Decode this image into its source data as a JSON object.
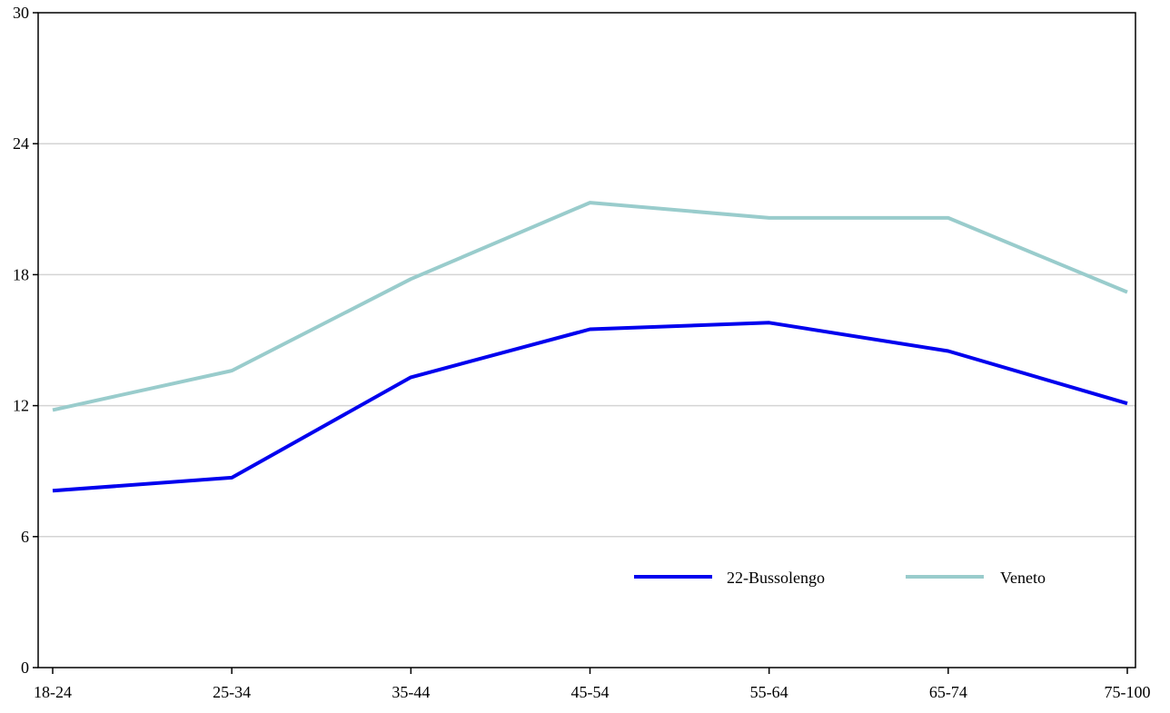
{
  "chart_data": {
    "type": "line",
    "title": "",
    "xlabel": "",
    "ylabel": "",
    "categories": [
      "18-24",
      "25-34",
      "35-44",
      "45-54",
      "55-64",
      "65-74",
      "75-100"
    ],
    "ylim": [
      0,
      30
    ],
    "yticks": [
      0,
      6,
      12,
      18,
      24,
      30
    ],
    "grid": "horizontal",
    "legend": "bottom-right",
    "series": [
      {
        "name": "22-Bussolengo",
        "color": "#0000ee",
        "values": [
          8.1,
          8.7,
          13.3,
          15.5,
          15.8,
          14.5,
          12.1
        ]
      },
      {
        "name": "Veneto",
        "color": "#99cccc",
        "values": [
          11.8,
          13.6,
          17.8,
          21.3,
          20.6,
          20.6,
          17.2
        ]
      }
    ]
  }
}
